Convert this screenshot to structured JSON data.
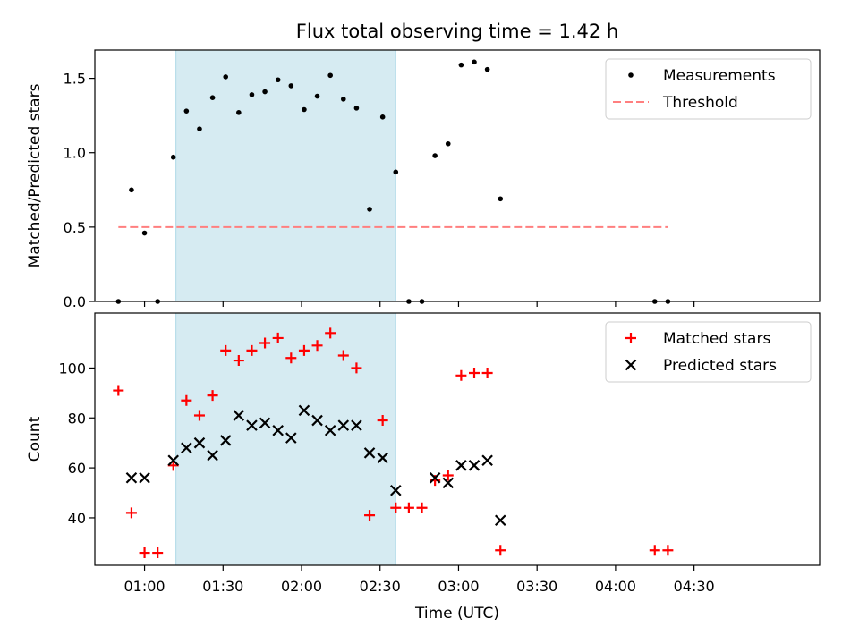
{
  "chart_data": {
    "title": "Flux total observing time = 1.42 h",
    "xlabel": "Time (UTC)",
    "x_unit": "minutes after 00:00 UTC",
    "xlim": [
      41,
      318
    ],
    "xticks": [
      {
        "value": 60,
        "label": "01:00"
      },
      {
        "value": 90,
        "label": "01:30"
      },
      {
        "value": 120,
        "label": "02:00"
      },
      {
        "value": 150,
        "label": "02:30"
      },
      {
        "value": 180,
        "label": "03:00"
      },
      {
        "value": 210,
        "label": "03:30"
      },
      {
        "value": 240,
        "label": "04:00"
      },
      {
        "value": 270,
        "label": "04:30"
      }
    ],
    "shaded_span": {
      "start": 72,
      "end": 156,
      "color": "#add8e6"
    },
    "colors": {
      "measurement": "#000000",
      "threshold": "#ff7f7f",
      "matched": "#ff0000",
      "predicted": "#000000"
    },
    "panels": [
      {
        "type": "scatter",
        "ylabel": "Matched/Predicted stars",
        "ylim": [
          0,
          1.69
        ],
        "yticks": [
          0.0,
          0.5,
          1.0,
          1.5
        ],
        "ytick_labels": [
          "0.0",
          "0.5",
          "1.0",
          "1.5"
        ],
        "legend": {
          "position": "top-right",
          "entries": [
            {
              "label": "Measurements",
              "marker": "dot"
            },
            {
              "label": "Threshold",
              "marker": "dashed-line"
            }
          ]
        },
        "threshold": {
          "y": 0.5,
          "x_start": 50,
          "x_end": 260
        },
        "series": [
          {
            "name": "Measurements",
            "marker": "dot",
            "points": [
              [
                50,
                0.0
              ],
              [
                55,
                0.75
              ],
              [
                60,
                0.46
              ],
              [
                65,
                0.0
              ],
              [
                71,
                0.97
              ],
              [
                76,
                1.28
              ],
              [
                81,
                1.16
              ],
              [
                86,
                1.37
              ],
              [
                91,
                1.51
              ],
              [
                96,
                1.27
              ],
              [
                101,
                1.39
              ],
              [
                106,
                1.41
              ],
              [
                111,
                1.49
              ],
              [
                116,
                1.45
              ],
              [
                121,
                1.29
              ],
              [
                126,
                1.38
              ],
              [
                131,
                1.52
              ],
              [
                136,
                1.36
              ],
              [
                141,
                1.3
              ],
              [
                146,
                0.62
              ],
              [
                151,
                1.24
              ],
              [
                156,
                0.87
              ],
              [
                161,
                0.0
              ],
              [
                166,
                0.0
              ],
              [
                171,
                0.98
              ],
              [
                176,
                1.06
              ],
              [
                181,
                1.59
              ],
              [
                186,
                1.61
              ],
              [
                191,
                1.56
              ],
              [
                196,
                0.69
              ],
              [
                255,
                0.0
              ],
              [
                260,
                0.0
              ]
            ]
          }
        ]
      },
      {
        "type": "scatter",
        "ylabel": "Count",
        "ylim": [
          21,
          122
        ],
        "yticks": [
          40,
          60,
          80,
          100
        ],
        "ytick_labels": [
          "40",
          "60",
          "80",
          "100"
        ],
        "legend": {
          "position": "top-right",
          "entries": [
            {
              "label": "Matched stars",
              "marker": "plus"
            },
            {
              "label": "Predicted stars",
              "marker": "x"
            }
          ]
        },
        "series": [
          {
            "name": "Matched stars",
            "marker": "plus",
            "points": [
              [
                50,
                91
              ],
              [
                55,
                42
              ],
              [
                60,
                26
              ],
              [
                65,
                26
              ],
              [
                71,
                61
              ],
              [
                76,
                87
              ],
              [
                81,
                81
              ],
              [
                86,
                89
              ],
              [
                91,
                107
              ],
              [
                96,
                103
              ],
              [
                101,
                107
              ],
              [
                106,
                110
              ],
              [
                111,
                112
              ],
              [
                116,
                104
              ],
              [
                121,
                107
              ],
              [
                126,
                109
              ],
              [
                131,
                114
              ],
              [
                136,
                105
              ],
              [
                141,
                100
              ],
              [
                146,
                41
              ],
              [
                151,
                79
              ],
              [
                156,
                44
              ],
              [
                161,
                44
              ],
              [
                166,
                44
              ],
              [
                171,
                55
              ],
              [
                176,
                57
              ],
              [
                181,
                97
              ],
              [
                186,
                98
              ],
              [
                191,
                98
              ],
              [
                196,
                27
              ],
              [
                255,
                27
              ],
              [
                260,
                27
              ]
            ]
          },
          {
            "name": "Predicted stars",
            "marker": "x",
            "points": [
              [
                55,
                56
              ],
              [
                60,
                56
              ],
              [
                71,
                63
              ],
              [
                76,
                68
              ],
              [
                81,
                70
              ],
              [
                86,
                65
              ],
              [
                91,
                71
              ],
              [
                96,
                81
              ],
              [
                101,
                77
              ],
              [
                106,
                78
              ],
              [
                111,
                75
              ],
              [
                116,
                72
              ],
              [
                121,
                83
              ],
              [
                126,
                79
              ],
              [
                131,
                75
              ],
              [
                136,
                77
              ],
              [
                141,
                77
              ],
              [
                146,
                66
              ],
              [
                151,
                64
              ],
              [
                156,
                51
              ],
              [
                171,
                56
              ],
              [
                176,
                54
              ],
              [
                181,
                61
              ],
              [
                186,
                61
              ],
              [
                191,
                63
              ],
              [
                196,
                39
              ]
            ]
          }
        ]
      }
    ]
  }
}
